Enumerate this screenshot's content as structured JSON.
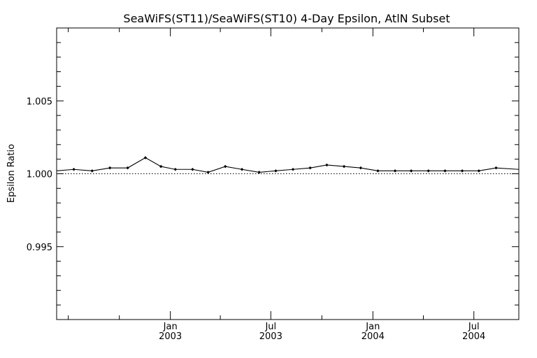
{
  "chart_data": {
    "type": "line",
    "title": "SeaWiFS(ST11)/SeaWiFS(ST10) 4-Day Epsilon, AtlN Subset",
    "xlabel": "",
    "ylabel": "Epsilon Ratio",
    "xlim": [
      "2002-06-10",
      "2004-09-20"
    ],
    "ylim": [
      0.99,
      1.01
    ],
    "y_ticks": [
      0.995,
      1.0,
      1.005
    ],
    "y_tick_labels": [
      "0.995",
      "1.000",
      "1.005"
    ],
    "x_ticks": [
      {
        "date": "2003-01-01",
        "month": "Jan",
        "year": "2003"
      },
      {
        "date": "2003-07-01",
        "month": "Jul",
        "year": "2003"
      },
      {
        "date": "2004-01-01",
        "month": "Jan",
        "year": "2004"
      },
      {
        "date": "2004-07-01",
        "month": "Jul",
        "year": "2004"
      }
    ],
    "reference_line": {
      "y": 1.0,
      "style": "dotted"
    },
    "grid": false,
    "series": [
      {
        "x": [
          "2002-06-10",
          "2002-07-11",
          "2002-08-13",
          "2002-09-14",
          "2002-10-16",
          "2002-11-17",
          "2002-12-15",
          "2003-01-10",
          "2003-02-10",
          "2003-03-10",
          "2003-04-10",
          "2003-05-10",
          "2003-06-10",
          "2003-07-10",
          "2003-08-10",
          "2003-09-10",
          "2003-10-10",
          "2003-11-10",
          "2003-12-10",
          "2004-01-10",
          "2004-02-10",
          "2004-03-10",
          "2004-04-10",
          "2004-05-10",
          "2004-06-10",
          "2004-07-10",
          "2004-08-10",
          "2004-09-20"
        ],
        "y": [
          1.0002,
          1.0003,
          1.0002,
          1.0004,
          1.0004,
          1.0011,
          1.0005,
          1.0003,
          1.0003,
          1.0001,
          1.0005,
          1.0003,
          1.0001,
          1.0002,
          1.0003,
          1.0004,
          1.0006,
          1.0005,
          1.0004,
          1.0002,
          1.0002,
          1.0002,
          1.0002,
          1.0002,
          1.0002,
          1.0002,
          1.0004,
          1.0003
        ]
      }
    ]
  }
}
